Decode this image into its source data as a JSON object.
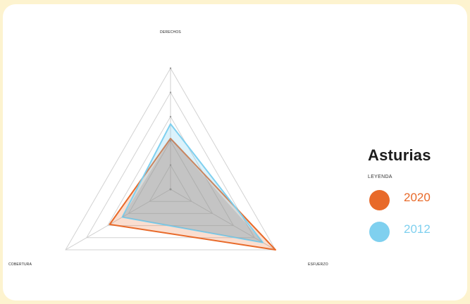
{
  "chart_data": {
    "type": "radar",
    "title": "Asturias",
    "legend_title": "LEYENDA",
    "axes": [
      "DERECHOS",
      "ESFUERZO",
      "COBERTURA"
    ],
    "levels": 5,
    "range": [
      0,
      5
    ],
    "grid": true,
    "legend_position": "right",
    "series": [
      {
        "name": "2020",
        "color": "#e86a2a",
        "values": [
          2.1,
          5.0,
          2.9
        ]
      },
      {
        "name": "2012",
        "color": "#7fd0ef",
        "values": [
          2.7,
          4.4,
          2.3
        ]
      }
    ]
  }
}
